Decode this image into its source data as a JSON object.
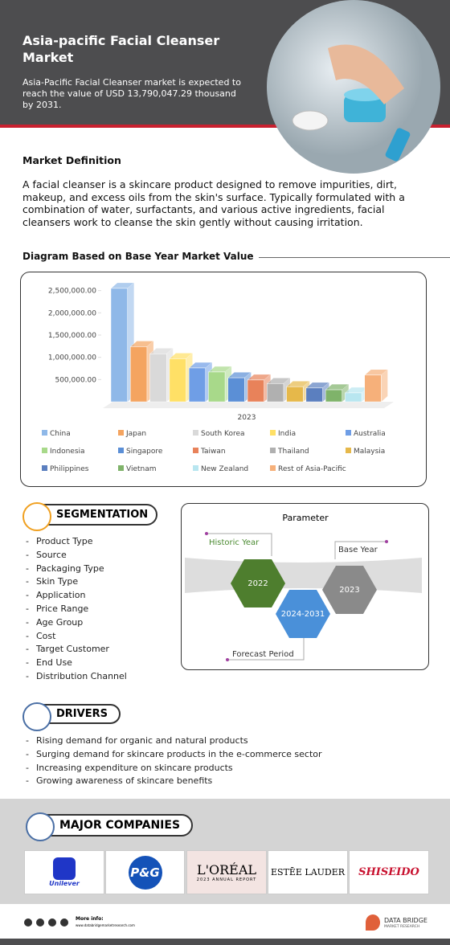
{
  "header": {
    "title": "Asia-pacific Facial Cleanser Market",
    "subtitle": "Asia-Pacific Facial Cleanser market is expected to reach the value of USD 13,790,047.29 thousand by 2031."
  },
  "definition": {
    "heading": "Market Definition",
    "text": "A facial cleanser is a skincare product designed to remove impurities, dirt, makeup, and excess oils from the skin's surface. Typically formulated with a combination of water, surfactants, and various active ingredients, facial cleansers work to cleanse the skin gently without causing irritation."
  },
  "diagram": {
    "heading": "Diagram Based on Base Year Market Value",
    "chart": {
      "type": "bar",
      "x_label": "2023",
      "categories": [
        "China",
        "Japan",
        "South Korea",
        "India",
        "Australia",
        "Indonesia",
        "Singapore",
        "Taiwan",
        "Thailand",
        "Malaysia",
        "Philippines",
        "Vietnam",
        "New Zealand",
        "Rest of Asia-Pacific"
      ],
      "values": [
        2550000,
        1240000,
        1080000,
        970000,
        760000,
        670000,
        540000,
        490000,
        410000,
        340000,
        310000,
        270000,
        200000,
        600000
      ],
      "colors": [
        "#8fb8e8",
        "#f4a460",
        "#d9d9d9",
        "#ffe066",
        "#6f9ee6",
        "#a8d98a",
        "#5b8fd6",
        "#e8825a",
        "#b0b0b0",
        "#e6b84a",
        "#5b7fbf",
        "#7fb36a",
        "#b8e6f0",
        "#f6b07a"
      ],
      "ylim": [
        0,
        2620000
      ],
      "yticks": [
        {
          "value": 500000,
          "label": "500,000.00"
        },
        {
          "value": 1000000,
          "label": "1,000,000.00"
        },
        {
          "value": 1500000,
          "label": "1,500,000.00"
        },
        {
          "value": 2000000,
          "label": "2,000,000.00"
        },
        {
          "value": 2500000,
          "label": "2,500,000.00"
        }
      ]
    }
  },
  "segmentation": {
    "heading": "SEGMENTATION",
    "items": [
      "Product Type",
      "Source",
      "Packaging Type",
      "Skin Type",
      "Application",
      "Price Range",
      "Age Group",
      "Cost",
      "Target Customer",
      "End Use",
      "Distribution Channel"
    ]
  },
  "parameter": {
    "title": "Parameter",
    "historic_label": "Historic Year",
    "historic": "2022",
    "forecast": "2024-2031",
    "forecast_label": "Forecast Period",
    "base_label": "Base Year",
    "base": "2023"
  },
  "drivers": {
    "heading": "DRIVERS",
    "items": [
      "Rising demand for organic and natural products",
      "Surging demand for skincare products in the e-commerce sector",
      "Increasing expenditure on skincare products",
      "Growing awareness of skincare benefits"
    ]
  },
  "companies": {
    "heading": "MAJOR COMPANIES",
    "logos": [
      "Unilever",
      "P&G",
      "L'ORÉAL",
      "2023 ANNUAL REPORT",
      "ESTĒE LAUDER",
      "SHISEIDO"
    ]
  },
  "footer": {
    "more_info": "More info:",
    "url": "www.databridgemarketresearch.com",
    "brand": "DATA BRIDGE",
    "brand_sub": "MARKET RESEARCH"
  }
}
